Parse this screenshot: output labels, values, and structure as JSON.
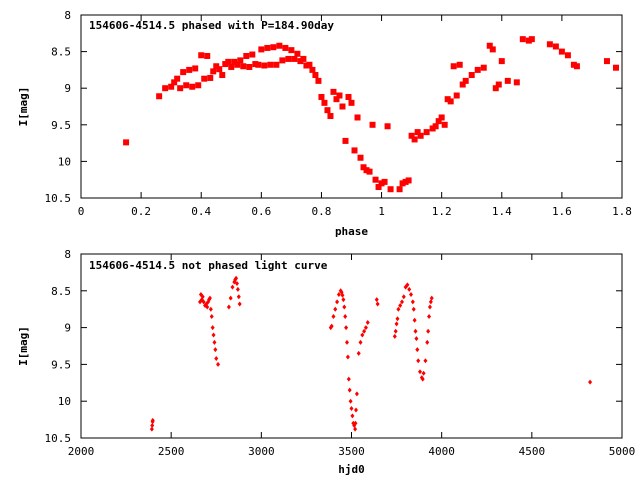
{
  "chart_data": [
    {
      "type": "scatter",
      "title": "154606-4514.5 phased with P=184.90day",
      "xlabel": "phase",
      "ylabel": "I[mag]",
      "xlim": [
        0,
        1.8
      ],
      "ylim": [
        10.5,
        8
      ],
      "y_inverted": true,
      "grid": false,
      "color": "#ff0000",
      "marker": "filled-square",
      "xticks": [
        0,
        0.2,
        0.4,
        0.6,
        0.8,
        1,
        1.2,
        1.4,
        1.6,
        1.8
      ],
      "xtick_labels": [
        "0",
        "0.2",
        "0.4",
        "0.6",
        "0.8",
        "1",
        "1.2",
        "1.4",
        "1.6",
        "1.8"
      ],
      "yticks": [
        8,
        8.5,
        9,
        9.5,
        10,
        10.5
      ],
      "ytick_labels": [
        "8",
        "8.5",
        "9",
        "9.5",
        "10",
        "10.5"
      ],
      "points": [
        [
          0.15,
          9.74
        ],
        [
          0.26,
          9.11
        ],
        [
          0.28,
          9.0
        ],
        [
          0.3,
          8.98
        ],
        [
          0.31,
          8.92
        ],
        [
          0.32,
          8.87
        ],
        [
          0.33,
          9.0
        ],
        [
          0.34,
          8.78
        ],
        [
          0.35,
          8.96
        ],
        [
          0.36,
          8.75
        ],
        [
          0.37,
          8.98
        ],
        [
          0.38,
          8.73
        ],
        [
          0.39,
          8.96
        ],
        [
          0.4,
          8.55
        ],
        [
          0.41,
          8.87
        ],
        [
          0.42,
          8.56
        ],
        [
          0.43,
          8.86
        ],
        [
          0.44,
          8.77
        ],
        [
          0.45,
          8.7
        ],
        [
          0.46,
          8.74
        ],
        [
          0.47,
          8.82
        ],
        [
          0.48,
          8.67
        ],
        [
          0.49,
          8.64
        ],
        [
          0.5,
          8.71
        ],
        [
          0.51,
          8.64
        ],
        [
          0.52,
          8.68
        ],
        [
          0.53,
          8.62
        ],
        [
          0.54,
          8.7
        ],
        [
          0.55,
          8.56
        ],
        [
          0.56,
          8.71
        ],
        [
          0.57,
          8.54
        ],
        [
          0.58,
          8.67
        ],
        [
          0.59,
          8.68
        ],
        [
          0.6,
          8.47
        ],
        [
          0.61,
          8.69
        ],
        [
          0.62,
          8.45
        ],
        [
          0.63,
          8.68
        ],
        [
          0.64,
          8.44
        ],
        [
          0.65,
          8.68
        ],
        [
          0.66,
          8.42
        ],
        [
          0.67,
          8.62
        ],
        [
          0.68,
          8.45
        ],
        [
          0.69,
          8.6
        ],
        [
          0.7,
          8.48
        ],
        [
          0.71,
          8.6
        ],
        [
          0.72,
          8.53
        ],
        [
          0.73,
          8.63
        ],
        [
          0.74,
          8.6
        ],
        [
          0.75,
          8.69
        ],
        [
          0.76,
          8.68
        ],
        [
          0.77,
          8.75
        ],
        [
          0.78,
          8.82
        ],
        [
          0.79,
          8.9
        ],
        [
          0.8,
          9.12
        ],
        [
          0.81,
          9.2
        ],
        [
          0.82,
          9.3
        ],
        [
          0.83,
          9.38
        ],
        [
          0.84,
          9.05
        ],
        [
          0.85,
          9.15
        ],
        [
          0.86,
          9.1
        ],
        [
          0.87,
          9.25
        ],
        [
          0.88,
          9.72
        ],
        [
          0.89,
          9.12
        ],
        [
          0.9,
          9.2
        ],
        [
          0.91,
          9.85
        ],
        [
          0.92,
          9.4
        ],
        [
          0.93,
          9.95
        ],
        [
          0.94,
          10.08
        ],
        [
          0.95,
          10.12
        ],
        [
          0.96,
          10.14
        ],
        [
          0.97,
          9.5
        ],
        [
          0.98,
          10.25
        ],
        [
          0.99,
          10.35
        ],
        [
          1.0,
          10.3
        ],
        [
          1.01,
          10.28
        ],
        [
          1.02,
          9.52
        ],
        [
          1.03,
          10.38
        ],
        [
          1.06,
          10.38
        ],
        [
          1.07,
          10.3
        ],
        [
          1.08,
          10.28
        ],
        [
          1.09,
          10.26
        ],
        [
          1.1,
          9.65
        ],
        [
          1.11,
          9.7
        ],
        [
          1.12,
          9.6
        ],
        [
          1.13,
          9.65
        ],
        [
          1.15,
          9.6
        ],
        [
          1.17,
          9.55
        ],
        [
          1.18,
          9.52
        ],
        [
          1.19,
          9.45
        ],
        [
          1.2,
          9.4
        ],
        [
          1.21,
          9.5
        ],
        [
          1.22,
          9.15
        ],
        [
          1.23,
          9.18
        ],
        [
          1.24,
          8.7
        ],
        [
          1.25,
          9.1
        ],
        [
          1.26,
          8.68
        ],
        [
          1.27,
          8.95
        ],
        [
          1.28,
          8.9
        ],
        [
          1.3,
          8.82
        ],
        [
          1.32,
          8.75
        ],
        [
          1.34,
          8.72
        ],
        [
          1.36,
          8.42
        ],
        [
          1.37,
          8.47
        ],
        [
          1.38,
          9.0
        ],
        [
          1.39,
          8.95
        ],
        [
          1.4,
          8.63
        ],
        [
          1.42,
          8.9
        ],
        [
          1.45,
          8.92
        ],
        [
          1.47,
          8.33
        ],
        [
          1.49,
          8.35
        ],
        [
          1.5,
          8.33
        ],
        [
          1.56,
          8.4
        ],
        [
          1.58,
          8.43
        ],
        [
          1.6,
          8.5
        ],
        [
          1.62,
          8.55
        ],
        [
          1.64,
          8.68
        ],
        [
          1.65,
          8.7
        ],
        [
          1.75,
          8.63
        ],
        [
          1.78,
          8.72
        ]
      ]
    },
    {
      "type": "scatter",
      "title": "154606-4514.5 not phased light curve",
      "xlabel": "hjd0",
      "ylabel": "I[mag]",
      "xlim": [
        2000,
        5000
      ],
      "ylim": [
        10.5,
        8
      ],
      "y_inverted": true,
      "grid": false,
      "color": "#ff0000",
      "marker": "small-diamond",
      "xticks": [
        2000,
        2500,
        3000,
        3500,
        4000,
        4500,
        5000
      ],
      "xtick_labels": [
        "2000",
        "2500",
        "3000",
        "3500",
        "4000",
        "4500",
        "5000"
      ],
      "yticks": [
        8,
        8.5,
        9,
        9.5,
        10,
        10.5
      ],
      "ytick_labels": [
        "8",
        "8.5",
        "9",
        "9.5",
        "10",
        "10.5"
      ],
      "points": [
        [
          2393,
          10.38
        ],
        [
          2395,
          10.33
        ],
        [
          2397,
          10.28
        ],
        [
          2398,
          10.26
        ],
        [
          2660,
          8.65
        ],
        [
          2665,
          8.55
        ],
        [
          2670,
          8.62
        ],
        [
          2675,
          8.58
        ],
        [
          2680,
          8.65
        ],
        [
          2688,
          8.7
        ],
        [
          2695,
          8.68
        ],
        [
          2700,
          8.72
        ],
        [
          2705,
          8.65
        ],
        [
          2710,
          8.62
        ],
        [
          2715,
          8.6
        ],
        [
          2720,
          8.75
        ],
        [
          2725,
          8.85
        ],
        [
          2730,
          9.0
        ],
        [
          2735,
          9.1
        ],
        [
          2740,
          9.2
        ],
        [
          2745,
          9.3
        ],
        [
          2750,
          9.42
        ],
        [
          2760,
          9.5
        ],
        [
          2820,
          8.72
        ],
        [
          2830,
          8.6
        ],
        [
          2840,
          8.45
        ],
        [
          2850,
          8.38
        ],
        [
          2855,
          8.35
        ],
        [
          2860,
          8.33
        ],
        [
          2865,
          8.4
        ],
        [
          2870,
          8.48
        ],
        [
          2875,
          8.58
        ],
        [
          2880,
          8.68
        ],
        [
          3385,
          9.0
        ],
        [
          3390,
          8.98
        ],
        [
          3400,
          8.85
        ],
        [
          3410,
          8.75
        ],
        [
          3420,
          8.65
        ],
        [
          3430,
          8.55
        ],
        [
          3440,
          8.5
        ],
        [
          3445,
          8.52
        ],
        [
          3450,
          8.56
        ],
        [
          3455,
          8.62
        ],
        [
          3460,
          8.72
        ],
        [
          3465,
          8.85
        ],
        [
          3470,
          9.0
        ],
        [
          3475,
          9.2
        ],
        [
          3480,
          9.4
        ],
        [
          3485,
          9.7
        ],
        [
          3490,
          9.85
        ],
        [
          3495,
          10.0
        ],
        [
          3500,
          10.1
        ],
        [
          3505,
          10.2
        ],
        [
          3510,
          10.3
        ],
        [
          3515,
          10.33
        ],
        [
          3520,
          10.38
        ],
        [
          3522,
          10.3
        ],
        [
          3525,
          10.12
        ],
        [
          3530,
          9.9
        ],
        [
          3540,
          9.35
        ],
        [
          3550,
          9.2
        ],
        [
          3560,
          9.1
        ],
        [
          3570,
          9.05
        ],
        [
          3580,
          9.0
        ],
        [
          3590,
          8.93
        ],
        [
          3640,
          8.62
        ],
        [
          3645,
          8.68
        ],
        [
          3740,
          9.12
        ],
        [
          3745,
          9.05
        ],
        [
          3750,
          8.95
        ],
        [
          3755,
          8.88
        ],
        [
          3760,
          8.75
        ],
        [
          3770,
          8.7
        ],
        [
          3780,
          8.65
        ],
        [
          3790,
          8.58
        ],
        [
          3800,
          8.45
        ],
        [
          3810,
          8.42
        ],
        [
          3820,
          8.48
        ],
        [
          3830,
          8.55
        ],
        [
          3840,
          8.65
        ],
        [
          3845,
          8.75
        ],
        [
          3850,
          8.9
        ],
        [
          3855,
          9.05
        ],
        [
          3860,
          9.15
        ],
        [
          3865,
          9.3
        ],
        [
          3870,
          9.45
        ],
        [
          3880,
          9.6
        ],
        [
          3890,
          9.68
        ],
        [
          3895,
          9.7
        ],
        [
          3900,
          9.62
        ],
        [
          3910,
          9.45
        ],
        [
          3920,
          9.2
        ],
        [
          3925,
          9.05
        ],
        [
          3930,
          8.85
        ],
        [
          3935,
          8.72
        ],
        [
          3940,
          8.65
        ],
        [
          3945,
          8.6
        ],
        [
          4823,
          9.74
        ]
      ]
    }
  ]
}
